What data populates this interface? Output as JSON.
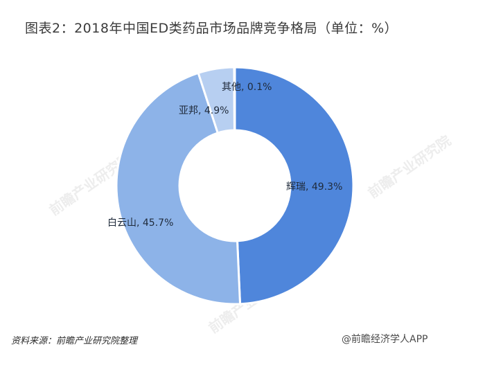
{
  "title": "图表2：2018年中国ED类药品市场品牌竞争格局（单位：%）",
  "chart_data": {
    "type": "pie",
    "subtype": "donut",
    "title": "图表2：2018年中国ED类药品市场品牌竞争格局（单位：%）",
    "unit": "%",
    "categories": [
      "辉瑞",
      "白云山",
      "亚邦",
      "其他"
    ],
    "values": [
      49.3,
      45.7,
      4.9,
      0.1
    ],
    "colors": [
      "#4f86db",
      "#8db3e8",
      "#b7cff1",
      "#d8e5f7"
    ],
    "start_angle": "12 o'clock, clockwise",
    "legend": "none (data labels on slices)"
  },
  "labels": {
    "huirui": "辉瑞, 49.3%",
    "baiyunshan": "白云山, 45.7%",
    "yabang": "亚邦, 4.9%",
    "other": "其他, 0.1%"
  },
  "watermark": "前瞻产业研究院",
  "footer": {
    "source": "资料来源：前瞻产业研究院整理",
    "brand": "@前瞻经济学人APP"
  }
}
